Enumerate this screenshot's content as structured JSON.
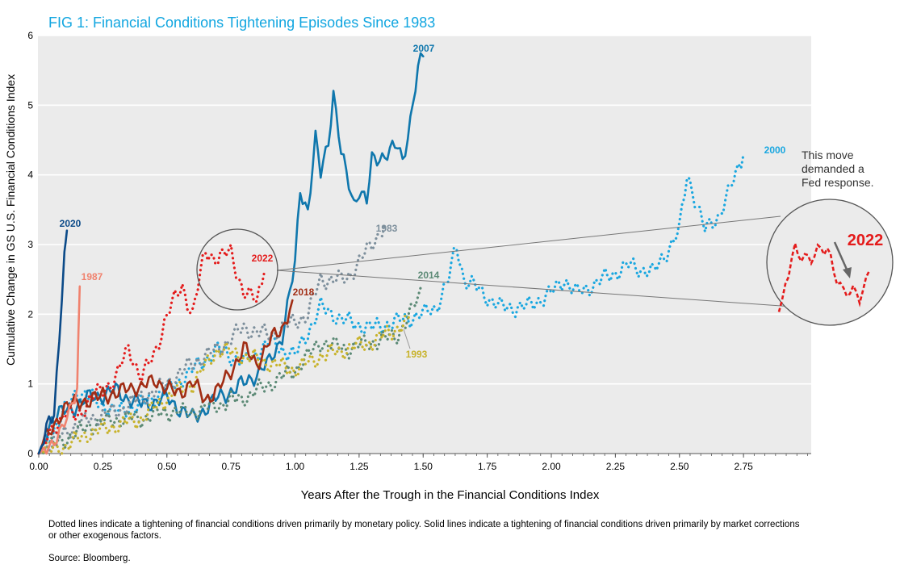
{
  "title": "FIG 1: Financial Conditions Tightening Episodes Since 1983",
  "note": "Dotted lines indicate a tightening of financial conditions driven primarily by monetary policy. Solid lines indicate a tightening of financial conditions driven primarily by market corrections or other exogenous factors.",
  "source": "Source: Bloomberg.",
  "annotation": "This move\ndemanded a\nFed response.",
  "inset_label": "2022",
  "chart_data": {
    "type": "line",
    "xlabel": "Years After the Trough in the Financial Conditions Index",
    "ylabel": "Cumulative Change in GS U.S. Financial Conditions Index",
    "xlim": [
      0,
      3.0
    ],
    "ylim": [
      0,
      6
    ],
    "xticks": [
      "0.00",
      "0.25",
      "0.50",
      "0.75",
      "1.00",
      "1.25",
      "1.50",
      "1.75",
      "2.00",
      "2.25",
      "2.50",
      "2.75"
    ],
    "yticks": [
      "0",
      "1",
      "2",
      "3",
      "4",
      "5",
      "6"
    ],
    "grid": "horizontal",
    "series": [
      {
        "name": "2000",
        "style": "dotted",
        "color": "#1aa7e0",
        "x": [
          0,
          0.05,
          0.1,
          0.15,
          0.2,
          0.3,
          0.4,
          0.5,
          0.6,
          0.7,
          0.8,
          0.9,
          1.0,
          1.1,
          1.2,
          1.3,
          1.4,
          1.5,
          1.55,
          1.6,
          1.63,
          1.66,
          1.7,
          1.8,
          1.9,
          2.0,
          2.05,
          2.1,
          2.2,
          2.3,
          2.4,
          2.5,
          2.53,
          2.55,
          2.6,
          2.65,
          2.7,
          2.75
        ],
        "y": [
          0,
          0.3,
          0.6,
          0.9,
          0.8,
          0.6,
          0.7,
          0.9,
          1.2,
          1.5,
          1.3,
          1.6,
          1.4,
          2.1,
          1.9,
          1.8,
          1.9,
          2.0,
          2.1,
          2.5,
          3.0,
          2.5,
          2.4,
          2.1,
          2.1,
          2.3,
          2.5,
          2.3,
          2.5,
          2.7,
          2.6,
          3.2,
          4.0,
          3.8,
          3.2,
          3.4,
          3.8,
          4.3
        ]
      },
      {
        "name": "2007",
        "style": "solid",
        "color": "#0f77ad",
        "x": [
          0,
          0.05,
          0.1,
          0.15,
          0.2,
          0.3,
          0.4,
          0.5,
          0.6,
          0.7,
          0.8,
          0.9,
          0.95,
          1.0,
          1.02,
          1.05,
          1.08,
          1.1,
          1.13,
          1.15,
          1.18,
          1.2,
          1.23,
          1.25,
          1.28,
          1.3,
          1.35,
          1.4,
          1.42,
          1.45,
          1.48,
          1.5
        ],
        "y": [
          0,
          0.5,
          0.6,
          0.7,
          0.8,
          0.9,
          0.7,
          0.8,
          0.5,
          0.8,
          1.0,
          1.3,
          1.7,
          2.7,
          3.8,
          3.5,
          4.5,
          4.0,
          4.5,
          5.2,
          4.3,
          4.0,
          3.6,
          3.8,
          3.6,
          4.2,
          4.3,
          4.4,
          4.2,
          4.8,
          5.5,
          5.7
        ]
      },
      {
        "name": "2020",
        "style": "solid",
        "color": "#0b4a88",
        "x": [
          0,
          0.02,
          0.04,
          0.06,
          0.08,
          0.1,
          0.11
        ],
        "y": [
          0,
          0.2,
          0.6,
          0.5,
          1.6,
          2.8,
          3.2
        ]
      },
      {
        "name": "1987",
        "style": "solid",
        "color": "#f0826e",
        "x": [
          0,
          0.03,
          0.06,
          0.09,
          0.12,
          0.15,
          0.16
        ],
        "y": [
          0,
          0.1,
          0.2,
          0.3,
          0.6,
          1.0,
          2.4
        ]
      },
      {
        "name": "2022",
        "style": "dotted",
        "color": "#e41b1b",
        "x": [
          0,
          0.05,
          0.1,
          0.15,
          0.2,
          0.25,
          0.3,
          0.35,
          0.4,
          0.45,
          0.5,
          0.53,
          0.56,
          0.6,
          0.65,
          0.7,
          0.75,
          0.8,
          0.85,
          0.88
        ],
        "y": [
          0,
          0.3,
          0.6,
          0.5,
          0.8,
          0.9,
          1.1,
          1.5,
          1.1,
          1.4,
          2.0,
          2.2,
          2.4,
          2.0,
          2.9,
          2.8,
          2.9,
          2.3,
          2.2,
          2.6
        ]
      },
      {
        "name": "2018",
        "style": "solid",
        "color": "#a12d14",
        "x": [
          0,
          0.05,
          0.1,
          0.15,
          0.2,
          0.25,
          0.3,
          0.35,
          0.4,
          0.45,
          0.5,
          0.55,
          0.6,
          0.65,
          0.7,
          0.75,
          0.8,
          0.85,
          0.9,
          0.95,
          0.99
        ],
        "y": [
          0,
          0.4,
          0.6,
          0.8,
          0.7,
          0.9,
          0.8,
          1.0,
          0.9,
          1.1,
          0.9,
          0.9,
          1.0,
          0.8,
          0.9,
          1.2,
          1.5,
          1.3,
          1.6,
          1.8,
          2.2
        ]
      },
      {
        "name": "1983",
        "style": "dotted",
        "color": "#7d8f9c",
        "x": [
          0,
          0.1,
          0.2,
          0.3,
          0.4,
          0.5,
          0.6,
          0.7,
          0.8,
          0.9,
          1.0,
          1.05,
          1.1,
          1.2,
          1.3,
          1.35
        ],
        "y": [
          0,
          0.3,
          0.5,
          0.6,
          0.8,
          1.0,
          1.3,
          1.5,
          1.8,
          1.7,
          1.9,
          2.0,
          2.5,
          2.5,
          3.0,
          3.3
        ]
      },
      {
        "name": "2014",
        "style": "dotted",
        "color": "#5c8a76",
        "x": [
          0,
          0.1,
          0.2,
          0.3,
          0.4,
          0.5,
          0.6,
          0.7,
          0.8,
          0.9,
          1.0,
          1.1,
          1.2,
          1.3,
          1.4,
          1.45,
          1.5
        ],
        "y": [
          0,
          0.2,
          0.4,
          0.5,
          0.5,
          0.6,
          0.6,
          0.7,
          0.8,
          1.0,
          1.2,
          1.6,
          1.5,
          1.6,
          1.7,
          2.0,
          2.4
        ]
      },
      {
        "name": "1993",
        "style": "dotted",
        "color": "#c8b32c",
        "x": [
          0,
          0.1,
          0.2,
          0.3,
          0.4,
          0.5,
          0.6,
          0.7,
          0.8,
          0.9,
          1.0,
          1.1,
          1.2,
          1.3,
          1.4,
          1.45
        ],
        "y": [
          0,
          0.1,
          0.3,
          0.4,
          0.5,
          0.8,
          1.0,
          1.5,
          1.4,
          1.3,
          1.2,
          1.4,
          1.5,
          1.6,
          1.8,
          1.9
        ]
      }
    ]
  }
}
